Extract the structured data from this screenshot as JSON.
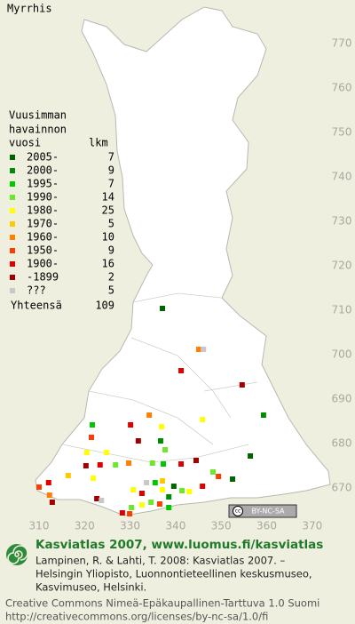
{
  "title": "Myrrhis",
  "legend": {
    "header": [
      "Vuusimman",
      "havainnon",
      "vuosi"
    ],
    "count_header": "lkm",
    "rows": [
      {
        "label": "2005-",
        "count": 7,
        "color": "#006400"
      },
      {
        "label": "2000-",
        "count": 9,
        "color": "#008c00"
      },
      {
        "label": "1995-",
        "count": 7,
        "color": "#00c800"
      },
      {
        "label": "1990-",
        "count": 14,
        "color": "#6ee62a"
      },
      {
        "label": "1980-",
        "count": 25,
        "color": "#ffff00"
      },
      {
        "label": "1970-",
        "count": 5,
        "color": "#ffc800"
      },
      {
        "label": "1960-",
        "count": 10,
        "color": "#ff7f00"
      },
      {
        "label": "1950-",
        "count": 9,
        "color": "#ff3c00"
      },
      {
        "label": "1900-",
        "count": 16,
        "color": "#dc0000"
      },
      {
        "label": "-1899",
        "count": 2,
        "color": "#a00000"
      },
      {
        "label": "???",
        "count": 5,
        "color": "#c8c8c8"
      }
    ],
    "total_label": "Yhteensä",
    "total": 109
  },
  "x_labels": [
    310,
    320,
    330,
    340,
    350,
    360,
    370
  ],
  "y_labels": [
    670,
    680,
    690,
    700,
    710,
    720,
    730,
    740,
    750,
    760,
    770
  ],
  "points": [
    {
      "x": 337.1,
      "y": 710.4,
      "class": 0
    },
    {
      "x": 345.1,
      "y": 701.2,
      "class": 6
    },
    {
      "x": 346.1,
      "y": 701.2,
      "class": 10
    },
    {
      "x": 341.2,
      "y": 696.4,
      "class": 8
    },
    {
      "x": 354.6,
      "y": 693.2,
      "class": 9
    },
    {
      "x": 359.3,
      "y": 686.4,
      "class": 1
    },
    {
      "x": 356.4,
      "y": 677.2,
      "class": 0
    },
    {
      "x": 345.9,
      "y": 685.4,
      "class": 4
    },
    {
      "x": 334.2,
      "y": 686.4,
      "class": 6
    },
    {
      "x": 336.9,
      "y": 683.8,
      "class": 4
    },
    {
      "x": 330.1,
      "y": 684.2,
      "class": 8
    },
    {
      "x": 331.8,
      "y": 680.6,
      "class": 9
    },
    {
      "x": 321.7,
      "y": 684.2,
      "class": 2
    },
    {
      "x": 321.5,
      "y": 681.4,
      "class": 7
    },
    {
      "x": 336.7,
      "y": 680.6,
      "class": 1
    },
    {
      "x": 337.7,
      "y": 678.6,
      "class": 3
    },
    {
      "x": 324.8,
      "y": 678.0,
      "class": 4
    },
    {
      "x": 320.5,
      "y": 678.0,
      "class": 4
    },
    {
      "x": 323.4,
      "y": 675.2,
      "class": 8
    },
    {
      "x": 326.8,
      "y": 675.2,
      "class": 3
    },
    {
      "x": 329.7,
      "y": 675.6,
      "class": 6
    },
    {
      "x": 334.9,
      "y": 675.6,
      "class": 3
    },
    {
      "x": 337.3,
      "y": 675.4,
      "class": 2
    },
    {
      "x": 341.2,
      "y": 675.4,
      "class": 8
    },
    {
      "x": 344.5,
      "y": 676.2,
      "class": 9
    },
    {
      "x": 348.2,
      "y": 673.6,
      "class": 3
    },
    {
      "x": 349.4,
      "y": 672.6,
      "class": 7
    },
    {
      "x": 352.5,
      "y": 672.0,
      "class": 0
    },
    {
      "x": 345.9,
      "y": 670.4,
      "class": 8
    },
    {
      "x": 321.9,
      "y": 672.2,
      "class": 4
    },
    {
      "x": 320.3,
      "y": 675.0,
      "class": 9
    },
    {
      "x": 316.4,
      "y": 672.8,
      "class": 5
    },
    {
      "x": 312.1,
      "y": 671.2,
      "class": 8
    },
    {
      "x": 310.0,
      "y": 670.2,
      "class": 7
    },
    {
      "x": 312.3,
      "y": 668.4,
      "class": 6
    },
    {
      "x": 312.9,
      "y": 666.8,
      "class": 9
    },
    {
      "x": 322.7,
      "y": 667.6,
      "class": 9
    },
    {
      "x": 323.7,
      "y": 667.2,
      "class": 10
    },
    {
      "x": 330.7,
      "y": 669.6,
      "class": 4
    },
    {
      "x": 332.6,
      "y": 668.8,
      "class": 8
    },
    {
      "x": 333.6,
      "y": 671.2,
      "class": 10
    },
    {
      "x": 335.5,
      "y": 671.2,
      "class": 2
    },
    {
      "x": 337.1,
      "y": 669.6,
      "class": 4
    },
    {
      "x": 338.5,
      "y": 668.0,
      "class": 1
    },
    {
      "x": 339.6,
      "y": 670.4,
      "class": 0
    },
    {
      "x": 341.4,
      "y": 669.4,
      "class": 3
    },
    {
      "x": 343.0,
      "y": 669.2,
      "class": 4
    },
    {
      "x": 334.6,
      "y": 666.8,
      "class": 3
    },
    {
      "x": 336.5,
      "y": 666.4,
      "class": 7
    },
    {
      "x": 332.6,
      "y": 666.2,
      "class": 4
    },
    {
      "x": 330.3,
      "y": 665.6,
      "class": 3
    },
    {
      "x": 328.3,
      "y": 664.4,
      "class": 8
    },
    {
      "x": 329.9,
      "y": 664.2,
      "class": 7
    },
    {
      "x": 338.5,
      "y": 665.6,
      "class": 2
    },
    {
      "x": 337.1,
      "y": 671.6,
      "class": 5
    }
  ],
  "badge": {
    "icon": "cc",
    "text": "BY-NC-SA"
  },
  "footer": {
    "title": "Kasviatlas 2007, www.luomus.fi/kasviatlas",
    "citation": [
      "Lampinen, R. & Lahti, T. 2008: Kasviatlas 2007. –",
      "Helsingin Yliopisto, Luonnontieteellinen keskusmuseo,",
      "Kasvimuseo, Helsinki."
    ],
    "license": [
      "Creative Commons Nimeä-Epäkaupallinen-Tarttuva 1.0 Suomi",
      "http://creativecommons.org/licenses/by-nc-sa/1.0/fi"
    ]
  }
}
